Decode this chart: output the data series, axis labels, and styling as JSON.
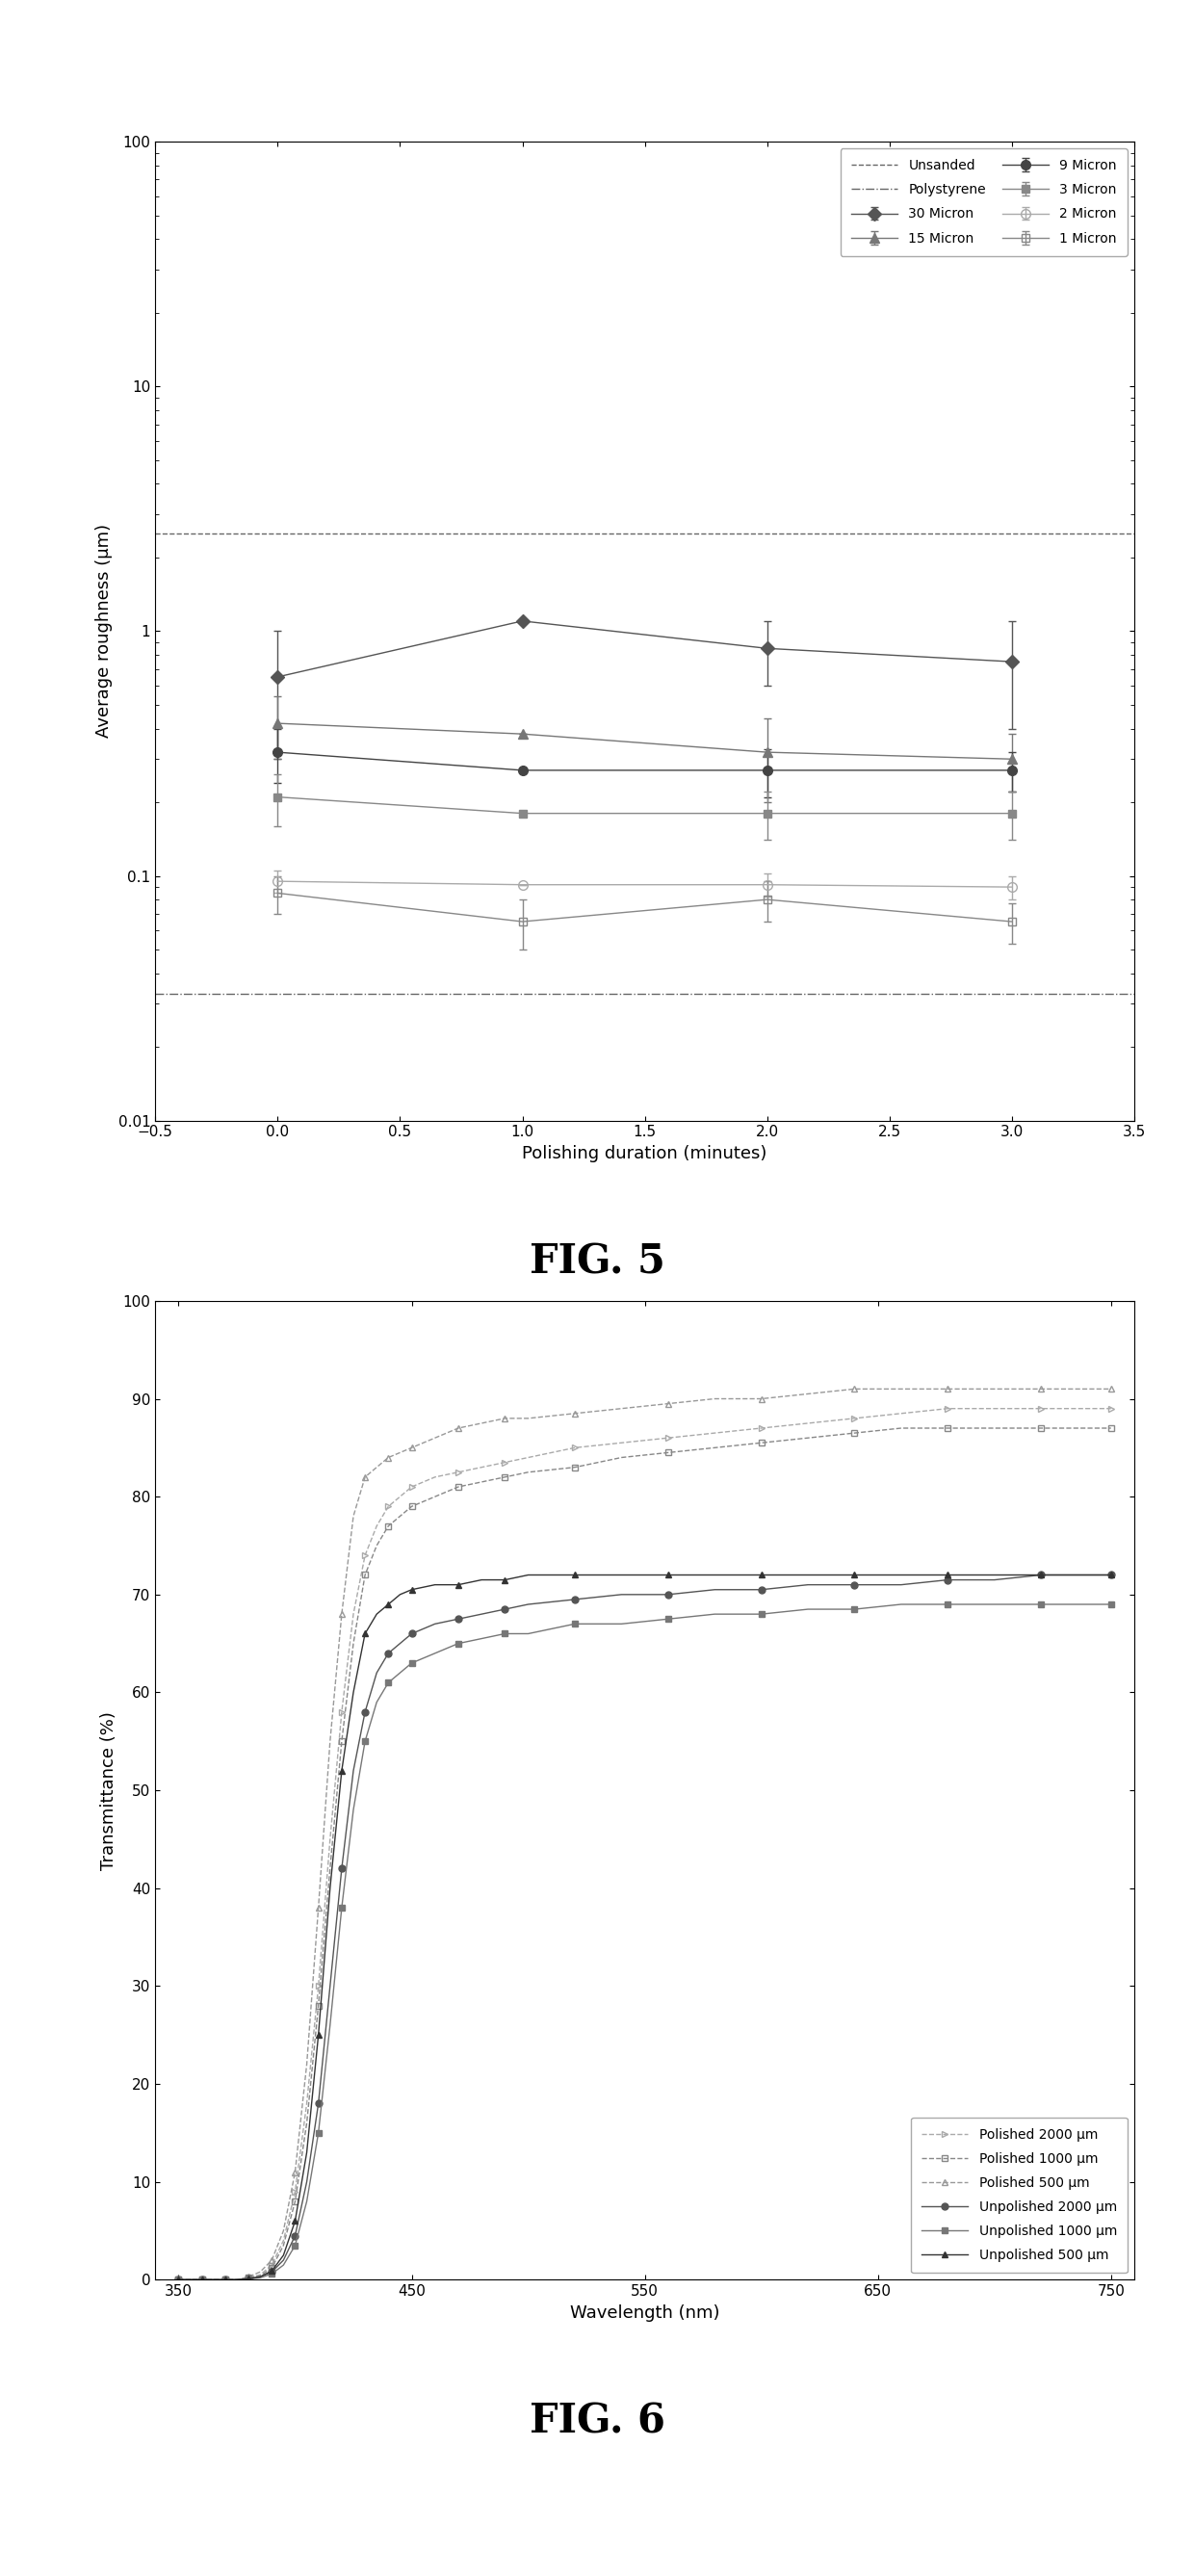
{
  "fig5": {
    "title": "FIG. 5",
    "xlabel": "Polishing duration (minutes)",
    "ylabel": "Average roughness (μm)",
    "xlim": [
      -0.5,
      3.5
    ],
    "ylim_log": [
      0.01,
      100
    ],
    "x_ticks": [
      -0.5,
      0,
      0.5,
      1.0,
      1.5,
      2.0,
      2.5,
      3.0,
      3.5
    ],
    "unsanded_y": 2.5,
    "polystyrene_y": 0.033,
    "series": [
      {
        "label": "30 Micron",
        "marker": "D",
        "color": "#555555",
        "x": [
          0,
          1,
          2,
          3
        ],
        "y": [
          0.65,
          1.1,
          0.85,
          0.75
        ],
        "yerr_lo": [
          0.35,
          0.0,
          0.25,
          0.35
        ],
        "yerr_hi": [
          0.35,
          0.0,
          0.25,
          0.35
        ],
        "markersize": 7,
        "fillstyle": "full"
      },
      {
        "label": "15 Micron",
        "marker": "^",
        "color": "#777777",
        "x": [
          0,
          1,
          2,
          3
        ],
        "y": [
          0.42,
          0.38,
          0.32,
          0.3
        ],
        "yerr_lo": [
          0.12,
          0.0,
          0.12,
          0.08
        ],
        "yerr_hi": [
          0.12,
          0.0,
          0.12,
          0.08
        ],
        "markersize": 7,
        "fillstyle": "full"
      },
      {
        "label": "9 Micron",
        "marker": "o",
        "color": "#444444",
        "x": [
          0,
          1,
          2,
          3
        ],
        "y": [
          0.32,
          0.27,
          0.27,
          0.27
        ],
        "yerr_lo": [
          0.08,
          0.0,
          0.06,
          0.05
        ],
        "yerr_hi": [
          0.08,
          0.0,
          0.06,
          0.05
        ],
        "markersize": 7,
        "fillstyle": "full"
      },
      {
        "label": "3 Micron",
        "marker": "s",
        "color": "#888888",
        "x": [
          0,
          1,
          2,
          3
        ],
        "y": [
          0.21,
          0.18,
          0.18,
          0.18
        ],
        "yerr_lo": [
          0.05,
          0.0,
          0.04,
          0.04
        ],
        "yerr_hi": [
          0.05,
          0.0,
          0.04,
          0.04
        ],
        "markersize": 6,
        "fillstyle": "full"
      },
      {
        "label": "2 Micron",
        "marker": "o",
        "color": "#aaaaaa",
        "x": [
          0,
          1,
          2,
          3
        ],
        "y": [
          0.095,
          0.092,
          0.092,
          0.09
        ],
        "yerr_lo": [
          0.01,
          0.0,
          0.01,
          0.01
        ],
        "yerr_hi": [
          0.01,
          0.0,
          0.01,
          0.01
        ],
        "markersize": 7,
        "fillstyle": "none"
      },
      {
        "label": "1 Micron",
        "marker": "s",
        "color": "#888888",
        "x": [
          0,
          1,
          2,
          3
        ],
        "y": [
          0.085,
          0.065,
          0.08,
          0.065
        ],
        "yerr_lo": [
          0.015,
          0.015,
          0.015,
          0.012
        ],
        "yerr_hi": [
          0.015,
          0.015,
          0.015,
          0.012
        ],
        "markersize": 6,
        "fillstyle": "none"
      }
    ]
  },
  "fig6": {
    "title": "FIG. 6",
    "xlabel": "Wavelength (nm)",
    "ylabel": "Transmittance (%)",
    "xlim": [
      340,
      760
    ],
    "ylim": [
      0,
      100
    ],
    "x_ticks": [
      350,
      450,
      550,
      650,
      750
    ],
    "y_ticks": [
      0,
      10,
      20,
      30,
      40,
      50,
      60,
      70,
      80,
      90,
      100
    ],
    "series": [
      {
        "label": "Polished 2000 μm",
        "marker": ">",
        "color": "#aaaaaa",
        "linestyle": "--",
        "markerfill": "none",
        "x": [
          350,
          355,
          360,
          365,
          370,
          375,
          380,
          385,
          390,
          395,
          400,
          405,
          410,
          415,
          420,
          425,
          430,
          435,
          440,
          445,
          450,
          460,
          470,
          480,
          490,
          500,
          520,
          540,
          560,
          580,
          600,
          620,
          640,
          660,
          680,
          700,
          720,
          740,
          750
        ],
        "y": [
          0,
          0,
          0,
          0,
          0,
          0,
          0.2,
          0.5,
          1.5,
          4,
          9,
          18,
          30,
          45,
          58,
          68,
          74,
          77,
          79,
          80,
          81,
          82,
          82.5,
          83,
          83.5,
          84,
          85,
          85.5,
          86,
          86.5,
          87,
          87.5,
          88,
          88.5,
          89,
          89,
          89,
          89,
          89
        ]
      },
      {
        "label": "Polished 1000 μm",
        "marker": "s",
        "color": "#888888",
        "linestyle": "--",
        "markerfill": "none",
        "x": [
          350,
          355,
          360,
          365,
          370,
          375,
          380,
          385,
          390,
          395,
          400,
          405,
          410,
          415,
          420,
          425,
          430,
          435,
          440,
          445,
          450,
          460,
          470,
          480,
          490,
          500,
          520,
          540,
          560,
          580,
          600,
          620,
          640,
          660,
          680,
          700,
          720,
          740,
          750
        ],
        "y": [
          0,
          0,
          0,
          0,
          0,
          0,
          0.2,
          0.4,
          1.2,
          3.5,
          8,
          16,
          28,
          42,
          55,
          65,
          72,
          75,
          77,
          78,
          79,
          80,
          81,
          81.5,
          82,
          82.5,
          83,
          84,
          84.5,
          85,
          85.5,
          86,
          86.5,
          87,
          87,
          87,
          87,
          87,
          87
        ]
      },
      {
        "label": "Polished 500 μm",
        "marker": "^",
        "color": "#999999",
        "linestyle": "--",
        "markerfill": "none",
        "x": [
          350,
          355,
          360,
          365,
          370,
          375,
          380,
          385,
          390,
          395,
          400,
          405,
          410,
          415,
          420,
          425,
          430,
          435,
          440,
          445,
          450,
          460,
          470,
          480,
          490,
          500,
          520,
          540,
          560,
          580,
          600,
          620,
          640,
          660,
          680,
          700,
          720,
          740,
          750
        ],
        "y": [
          0,
          0,
          0,
          0,
          0,
          0,
          0.3,
          0.8,
          2,
          5,
          11,
          22,
          38,
          55,
          68,
          78,
          82,
          83,
          84,
          84.5,
          85,
          86,
          87,
          87.5,
          88,
          88,
          88.5,
          89,
          89.5,
          90,
          90,
          90.5,
          91,
          91,
          91,
          91,
          91,
          91,
          91
        ]
      },
      {
        "label": "Unpolished 2000 μm",
        "marker": "o",
        "color": "#555555",
        "linestyle": "-",
        "markerfill": "full",
        "x": [
          350,
          355,
          360,
          365,
          370,
          375,
          380,
          385,
          390,
          395,
          400,
          405,
          410,
          415,
          420,
          425,
          430,
          435,
          440,
          445,
          450,
          460,
          470,
          480,
          490,
          500,
          520,
          540,
          560,
          580,
          600,
          620,
          640,
          660,
          680,
          700,
          720,
          740,
          750
        ],
        "y": [
          0,
          0,
          0,
          0,
          0,
          0,
          0.1,
          0.3,
          0.8,
          2,
          4.5,
          10,
          18,
          30,
          42,
          52,
          58,
          62,
          64,
          65,
          66,
          67,
          67.5,
          68,
          68.5,
          69,
          69.5,
          70,
          70,
          70.5,
          70.5,
          71,
          71,
          71,
          71.5,
          71.5,
          72,
          72,
          72
        ]
      },
      {
        "label": "Unpolished 1000 μm",
        "marker": "s",
        "color": "#777777",
        "linestyle": "-",
        "markerfill": "full",
        "x": [
          350,
          355,
          360,
          365,
          370,
          375,
          380,
          385,
          390,
          395,
          400,
          405,
          410,
          415,
          420,
          425,
          430,
          435,
          440,
          445,
          450,
          460,
          470,
          480,
          490,
          500,
          520,
          540,
          560,
          580,
          600,
          620,
          640,
          660,
          680,
          700,
          720,
          740,
          750
        ],
        "y": [
          0,
          0,
          0,
          0,
          0,
          0,
          0.1,
          0.2,
          0.6,
          1.5,
          3.5,
          8,
          15,
          26,
          38,
          48,
          55,
          59,
          61,
          62,
          63,
          64,
          65,
          65.5,
          66,
          66,
          67,
          67,
          67.5,
          68,
          68,
          68.5,
          68.5,
          69,
          69,
          69,
          69,
          69,
          69
        ]
      },
      {
        "label": "Unpolished 500 μm",
        "marker": "^",
        "color": "#333333",
        "linestyle": "-",
        "markerfill": "full",
        "x": [
          350,
          355,
          360,
          365,
          370,
          375,
          380,
          385,
          390,
          395,
          400,
          405,
          410,
          415,
          420,
          425,
          430,
          435,
          440,
          445,
          450,
          460,
          470,
          480,
          490,
          500,
          520,
          540,
          560,
          580,
          600,
          620,
          640,
          660,
          680,
          700,
          720,
          740,
          750
        ],
        "y": [
          0,
          0,
          0,
          0,
          0,
          0,
          0.1,
          0.3,
          0.9,
          2.5,
          6,
          13,
          25,
          40,
          52,
          60,
          66,
          68,
          69,
          70,
          70.5,
          71,
          71,
          71.5,
          71.5,
          72,
          72,
          72,
          72,
          72,
          72,
          72,
          72,
          72,
          72,
          72,
          72,
          72,
          72
        ]
      }
    ]
  }
}
